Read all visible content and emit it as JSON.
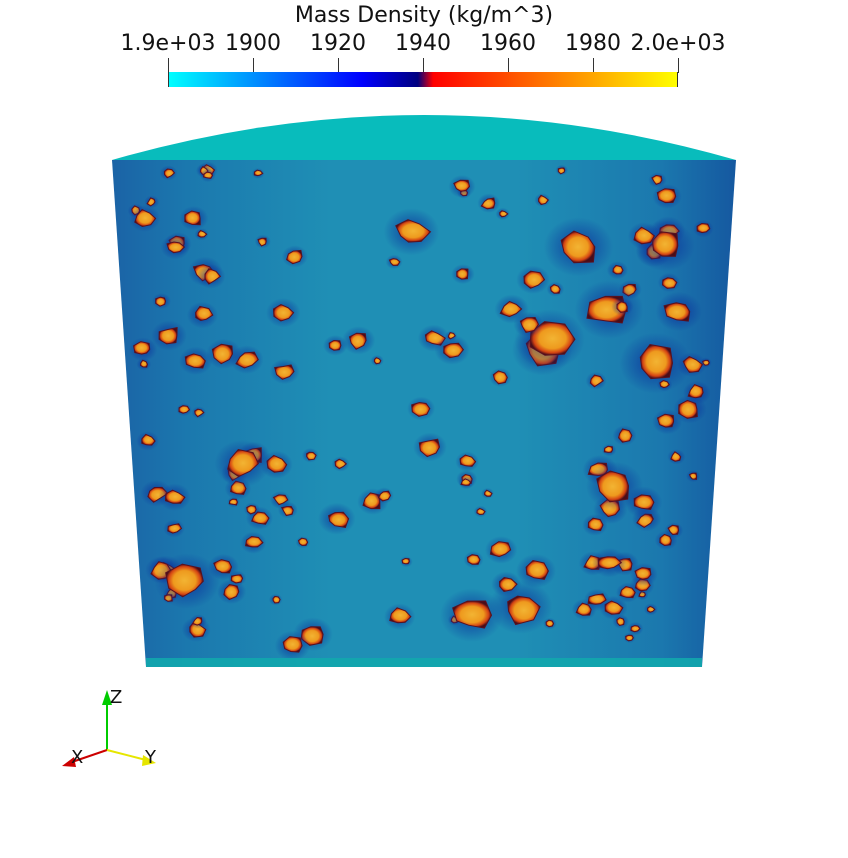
{
  "colorbar": {
    "title": "Mass Density (kg/m^3)",
    "ticks": [
      {
        "label": "1.9e+03",
        "value": 1880
      },
      {
        "label": "1900",
        "value": 1900
      },
      {
        "label": "1920",
        "value": 1920
      },
      {
        "label": "1940",
        "value": 1940
      },
      {
        "label": "1960",
        "value": 1960
      },
      {
        "label": "1980",
        "value": 1980
      },
      {
        "label": "2.0e+03",
        "value": 2000
      }
    ],
    "colors": [
      "#00ffff",
      "#0000ff",
      "#00007f",
      "#ff0000",
      "#ff7f00",
      "#ffff00"
    ]
  },
  "view": {
    "surface_color": "#1a9fb5",
    "inclusion_color": "#f0a020",
    "background": "#ffffff"
  },
  "orientation_axes": {
    "z_label": "Z",
    "x_label": "X",
    "y_label": "Y",
    "z_color": "#00cc00",
    "x_color": "#cc0000",
    "y_color": "#e6e600"
  }
}
